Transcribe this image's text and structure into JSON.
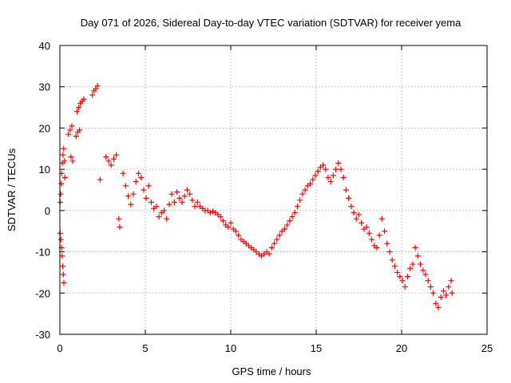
{
  "chart_data": {
    "type": "scatter",
    "title": "Day 071 of 2026, Sidereal Day-to-day VTEC variation (SDTVAR) for receiver yema",
    "xlabel": "GPS time / hours",
    "ylabel": "SDTVAR / TECUs",
    "xlim": [
      0,
      25
    ],
    "ylim": [
      -30,
      40
    ],
    "xticks": [
      0,
      5,
      10,
      15,
      20,
      25
    ],
    "yticks": [
      -30,
      -20,
      -10,
      0,
      10,
      20,
      30,
      40
    ],
    "grid": true,
    "marker": "plus",
    "color": "#ff0000",
    "series": [
      {
        "name": "SDTVAR",
        "points": [
          [
            0.02,
            -5.5
          ],
          [
            0.06,
            -7
          ],
          [
            0.1,
            -9
          ],
          [
            0.13,
            -11
          ],
          [
            0.17,
            -13.5
          ],
          [
            0.2,
            -15.5
          ],
          [
            0.23,
            -17.5
          ],
          [
            0.02,
            2
          ],
          [
            0.05,
            4
          ],
          [
            0.08,
            6.5
          ],
          [
            0.11,
            9
          ],
          [
            0.14,
            11.5
          ],
          [
            0.18,
            13.5
          ],
          [
            0.22,
            15
          ],
          [
            0.27,
            12
          ],
          [
            0.3,
            8
          ],
          [
            0.5,
            18.5
          ],
          [
            0.6,
            19.5
          ],
          [
            0.7,
            20.5
          ],
          [
            0.65,
            13
          ],
          [
            0.75,
            12
          ],
          [
            0.95,
            18
          ],
          [
            1.05,
            19
          ],
          [
            1.15,
            19.5
          ],
          [
            1.0,
            24
          ],
          [
            1.1,
            25
          ],
          [
            1.2,
            26
          ],
          [
            1.3,
            26.5
          ],
          [
            1.4,
            27
          ],
          [
            1.9,
            28
          ],
          [
            2.0,
            29
          ],
          [
            2.1,
            29.5
          ],
          [
            2.2,
            30.2
          ],
          [
            2.35,
            7.5
          ],
          [
            2.7,
            13
          ],
          [
            2.85,
            12
          ],
          [
            3.0,
            11
          ],
          [
            3.15,
            12.5
          ],
          [
            3.3,
            13.5
          ],
          [
            3.45,
            -2
          ],
          [
            3.5,
            -4
          ],
          [
            3.7,
            9
          ],
          [
            3.85,
            6
          ],
          [
            4.0,
            3.5
          ],
          [
            4.15,
            1.5
          ],
          [
            4.3,
            4
          ],
          [
            4.45,
            7
          ],
          [
            4.6,
            9
          ],
          [
            4.75,
            8
          ],
          [
            4.9,
            5
          ],
          [
            5.05,
            3
          ],
          [
            5.2,
            6
          ],
          [
            5.35,
            2
          ],
          [
            5.5,
            0.5
          ],
          [
            5.65,
            1
          ],
          [
            5.8,
            -1.5
          ],
          [
            5.95,
            -0.5
          ],
          [
            6.1,
            0
          ],
          [
            6.25,
            -2
          ],
          [
            6.4,
            1.5
          ],
          [
            6.55,
            4
          ],
          [
            6.7,
            2
          ],
          [
            6.85,
            4.5
          ],
          [
            7.0,
            3
          ],
          [
            7.15,
            2
          ],
          [
            7.3,
            3.5
          ],
          [
            7.45,
            5
          ],
          [
            7.6,
            4
          ],
          [
            7.75,
            2.5
          ],
          [
            7.9,
            1
          ],
          [
            8.05,
            2
          ],
          [
            8.2,
            1
          ],
          [
            8.35,
            0.5
          ],
          [
            8.5,
            0
          ],
          [
            8.65,
            0
          ],
          [
            8.8,
            -0.5
          ],
          [
            8.95,
            -0.2
          ],
          [
            9.1,
            -0.5
          ],
          [
            9.25,
            -1
          ],
          [
            9.4,
            -1.5
          ],
          [
            9.55,
            -2.5
          ],
          [
            9.7,
            -3.5
          ],
          [
            9.85,
            -4
          ],
          [
            10.0,
            -3
          ],
          [
            10.15,
            -4.5
          ],
          [
            10.3,
            -5
          ],
          [
            10.45,
            -6
          ],
          [
            10.6,
            -7
          ],
          [
            10.75,
            -7.5
          ],
          [
            10.9,
            -8
          ],
          [
            11.05,
            -8.5
          ],
          [
            11.2,
            -9
          ],
          [
            11.35,
            -9.5
          ],
          [
            11.5,
            -10
          ],
          [
            11.65,
            -10.5
          ],
          [
            11.8,
            -11
          ],
          [
            11.95,
            -10.5
          ],
          [
            12.1,
            -10
          ],
          [
            12.25,
            -10.5
          ],
          [
            12.4,
            -9
          ],
          [
            12.55,
            -8
          ],
          [
            12.7,
            -7
          ],
          [
            12.85,
            -6
          ],
          [
            13.0,
            -5
          ],
          [
            13.15,
            -4.5
          ],
          [
            13.3,
            -3.5
          ],
          [
            13.45,
            -2.5
          ],
          [
            13.6,
            -1.5
          ],
          [
            13.75,
            -0.5
          ],
          [
            13.9,
            1
          ],
          [
            14.05,
            2.5
          ],
          [
            14.2,
            4
          ],
          [
            14.35,
            5
          ],
          [
            14.5,
            6
          ],
          [
            14.65,
            6.5
          ],
          [
            14.8,
            7.5
          ],
          [
            14.95,
            8.5
          ],
          [
            15.1,
            9.5
          ],
          [
            15.25,
            10.5
          ],
          [
            15.4,
            11
          ],
          [
            15.55,
            10
          ],
          [
            15.7,
            8
          ],
          [
            15.85,
            7
          ],
          [
            16.0,
            8.5
          ],
          [
            16.15,
            10
          ],
          [
            16.3,
            11.5
          ],
          [
            16.45,
            10
          ],
          [
            16.6,
            8
          ],
          [
            16.75,
            5
          ],
          [
            16.9,
            3
          ],
          [
            17.05,
            1
          ],
          [
            17.2,
            -0.5
          ],
          [
            17.35,
            -2
          ],
          [
            17.5,
            -1
          ],
          [
            17.65,
            -3
          ],
          [
            17.8,
            -4.5
          ],
          [
            17.95,
            -4
          ],
          [
            18.1,
            -5.5
          ],
          [
            18.25,
            -7
          ],
          [
            18.4,
            -8.5
          ],
          [
            18.55,
            -9
          ],
          [
            18.7,
            -6
          ],
          [
            18.85,
            -2
          ],
          [
            19.0,
            -5
          ],
          [
            19.15,
            -8
          ],
          [
            19.3,
            -10
          ],
          [
            19.45,
            -12
          ],
          [
            19.6,
            -13.5
          ],
          [
            19.75,
            -15
          ],
          [
            19.9,
            -16
          ],
          [
            20.05,
            -17
          ],
          [
            20.2,
            -18.5
          ],
          [
            20.35,
            -16
          ],
          [
            20.5,
            -14
          ],
          [
            20.65,
            -13
          ],
          [
            20.8,
            -9
          ],
          [
            20.95,
            -11
          ],
          [
            21.1,
            -13
          ],
          [
            21.25,
            -14.5
          ],
          [
            21.4,
            -15.5
          ],
          [
            21.55,
            -17
          ],
          [
            21.7,
            -18.5
          ],
          [
            21.85,
            -20
          ],
          [
            22.0,
            -22.5
          ],
          [
            22.15,
            -23.5
          ],
          [
            22.3,
            -21
          ],
          [
            22.45,
            -19.5
          ],
          [
            22.6,
            -20.5
          ],
          [
            22.75,
            -18.5
          ],
          [
            22.9,
            -17
          ],
          [
            22.95,
            -20
          ]
        ]
      }
    ]
  }
}
